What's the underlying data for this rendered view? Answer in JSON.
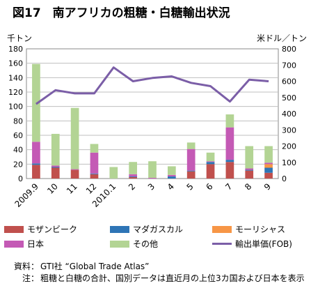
{
  "title": "図17　南アフリカの粗糖・白糖輸出状況",
  "chart_data": {
    "type": "bar",
    "stacked": true,
    "categories": [
      "2009.9",
      "10",
      "11",
      "12",
      "2010.1",
      "2",
      "3",
      "4",
      "5",
      "6",
      "7",
      "8",
      "9"
    ],
    "series": [
      {
        "name": "モザンビーク",
        "color": "#c0504d",
        "values": [
          19,
          15,
          12,
          6,
          0,
          2,
          0,
          0,
          10,
          20,
          23,
          11,
          8
        ]
      },
      {
        "name": "マダガスカル",
        "color": "#2e75b6",
        "values": [
          2,
          1,
          0,
          1,
          0,
          1,
          0,
          3,
          1,
          3,
          3,
          1,
          7
        ]
      },
      {
        "name": "モーリシャス",
        "color": "#f79646",
        "values": [
          0,
          0,
          0,
          0,
          0,
          0,
          0,
          0,
          0,
          0,
          0,
          0,
          5
        ]
      },
      {
        "name": "日本",
        "color": "#c45ab5",
        "values": [
          30,
          2,
          1,
          29,
          0,
          3,
          1,
          2,
          30,
          1,
          45,
          2,
          2
        ]
      },
      {
        "name": "その他",
        "color": "#b3d494",
        "values": [
          108,
          44,
          85,
          12,
          16,
          17,
          23,
          12,
          9,
          12,
          18,
          31,
          23
        ]
      }
    ],
    "line": {
      "name": "輸出単価(FOB)",
      "color": "#7b5ea7",
      "axis": "right",
      "values": [
        460,
        545,
        525,
        525,
        685,
        600,
        620,
        630,
        590,
        570,
        475,
        610,
        600
      ]
    },
    "left_axis": {
      "label": "千トン",
      "min": 0,
      "max": 180,
      "step": 20
    },
    "right_axis": {
      "label": "米ドル／トン",
      "min": 0,
      "max": 800,
      "step": 100
    },
    "grid": true,
    "legend_position": "bottom"
  },
  "notes": [
    {
      "label": "資料：",
      "text": "GTI社 “Global Trade Atlas”"
    },
    {
      "label": "注：",
      "text": "粗糖と白糖の合計、国別データは直近月の上位3カ国および日本を表示"
    }
  ]
}
